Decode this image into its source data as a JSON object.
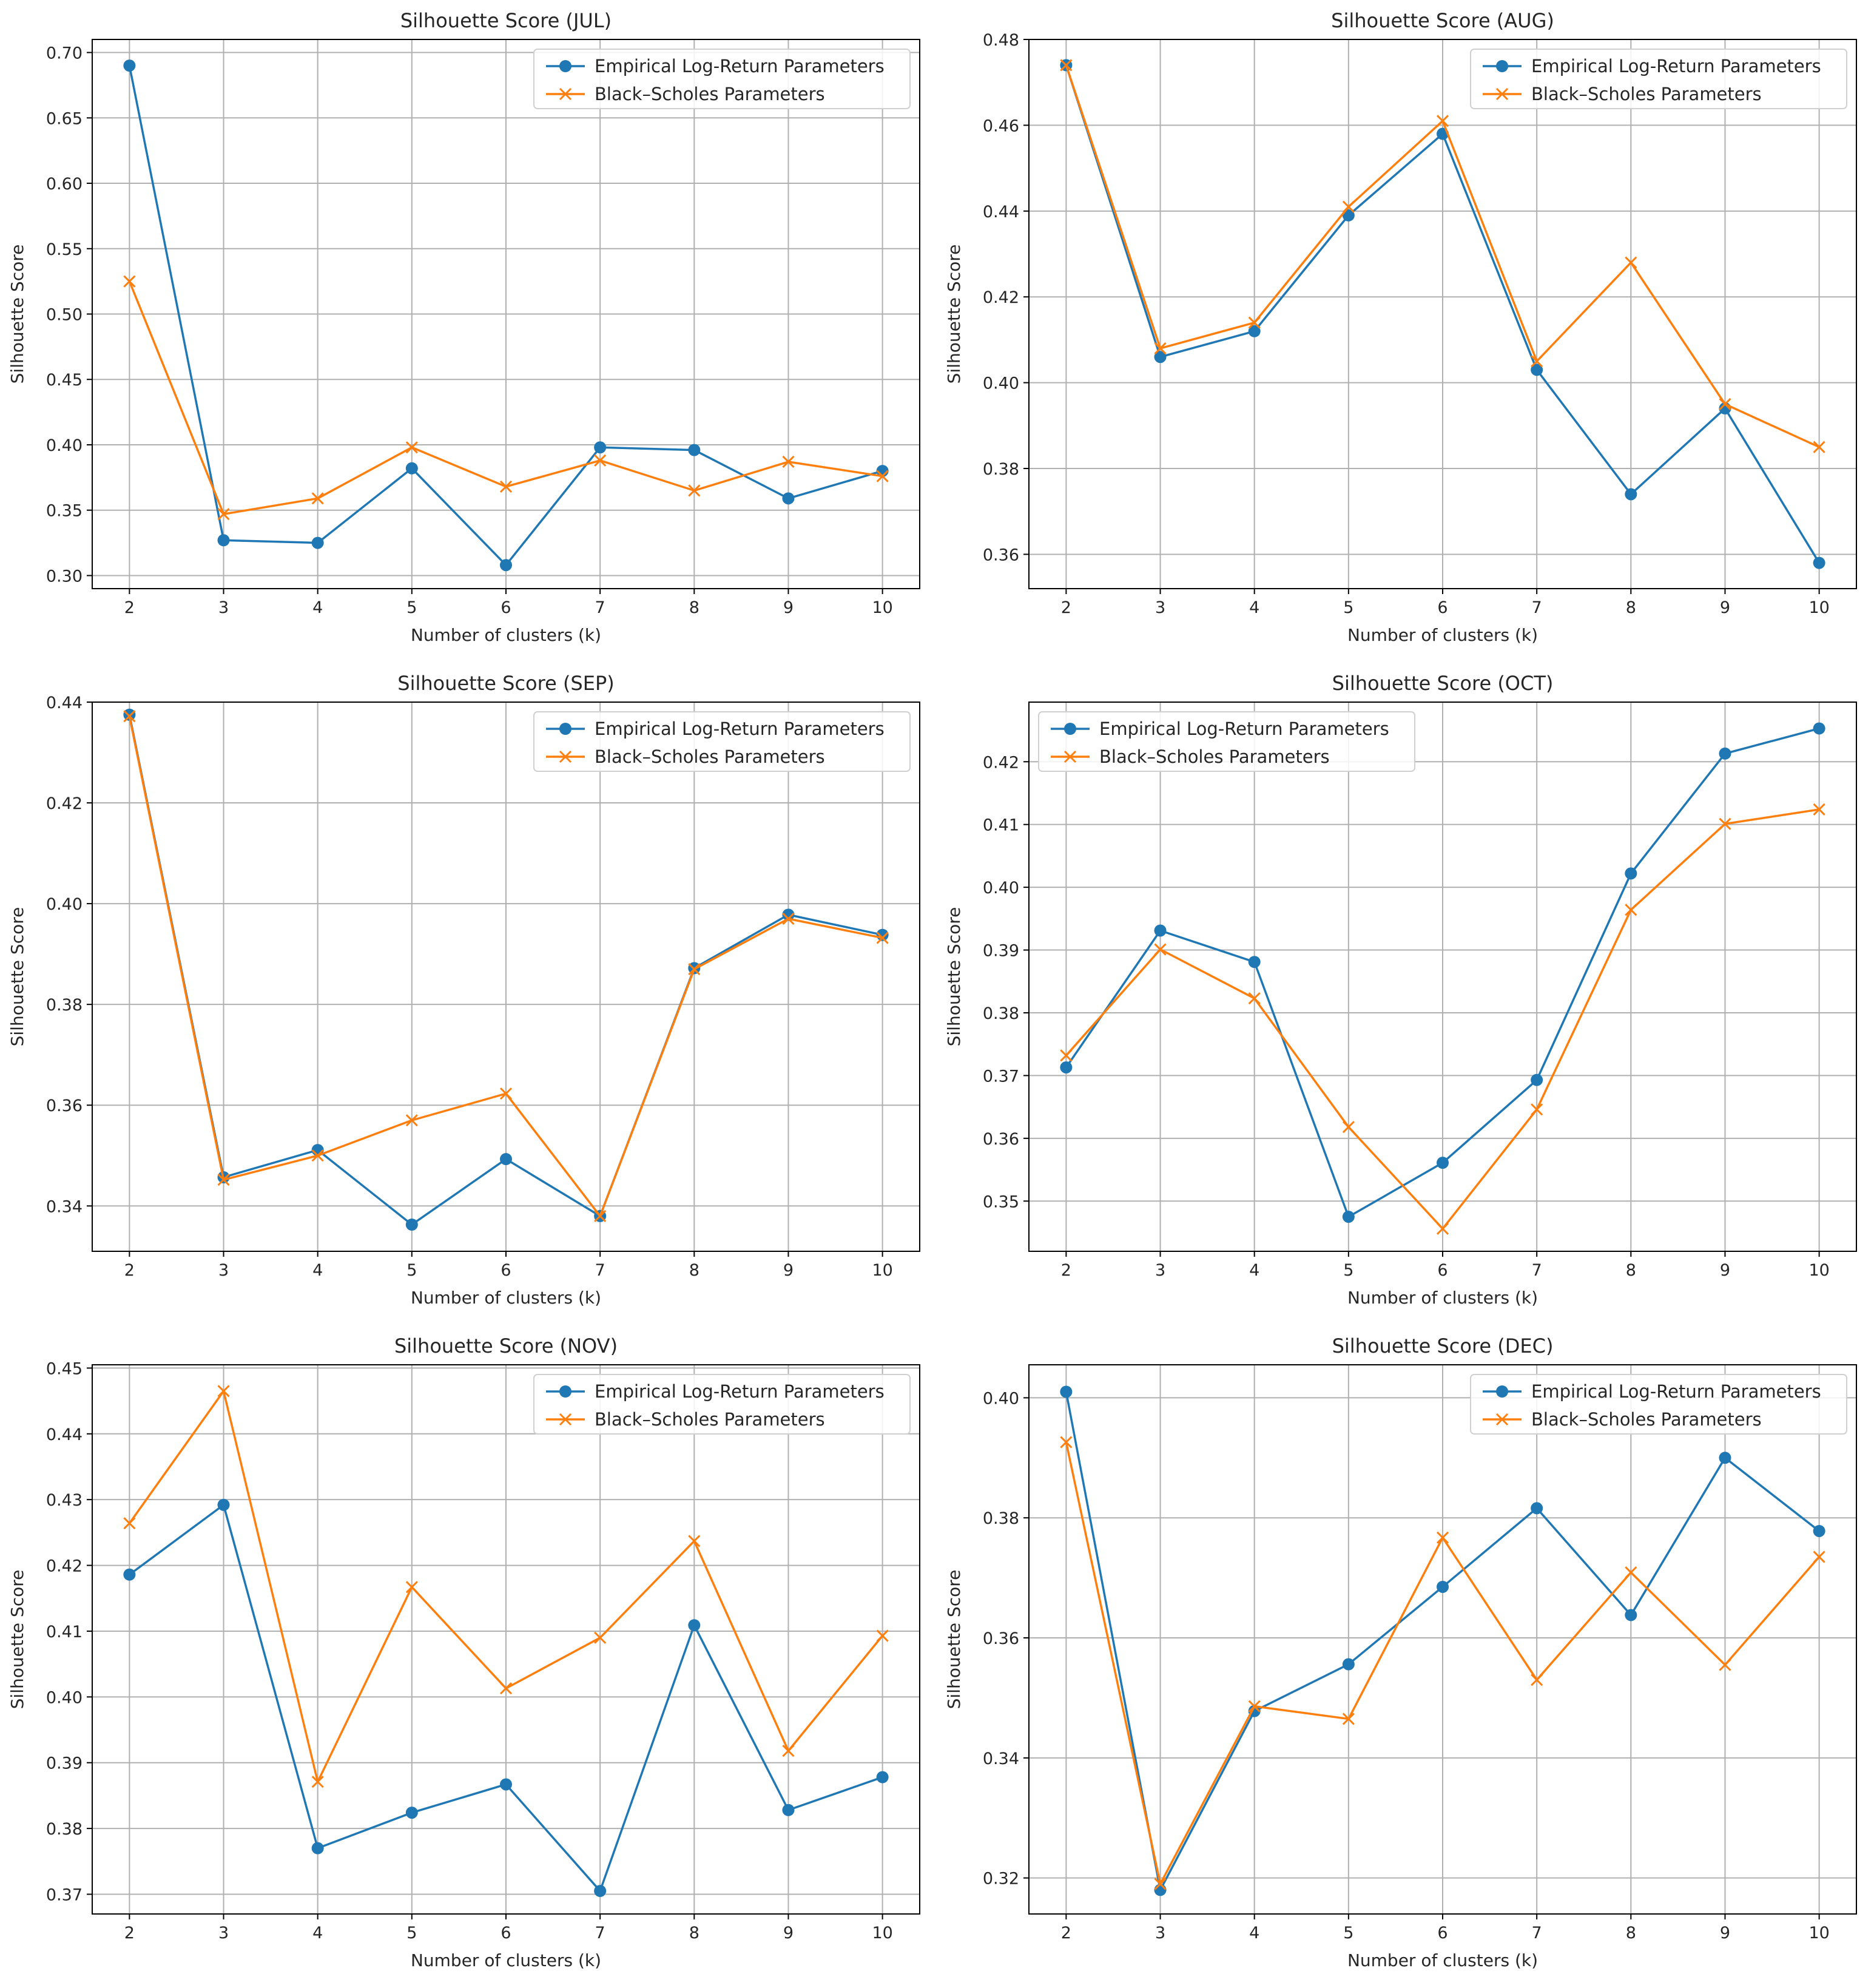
{
  "chart_data": [
    {
      "type": "line",
      "title": "Silhouette Score (JUL)",
      "xlabel": "Number of clusters (k)",
      "ylabel": "Silhouette Score",
      "x": [
        2,
        3,
        4,
        5,
        6,
        7,
        8,
        9,
        10
      ],
      "ylim": [
        0.29,
        0.71
      ],
      "yticks": [
        "0.30",
        "0.35",
        "0.40",
        "0.45",
        "0.50",
        "0.55",
        "0.60",
        "0.65",
        "0.70"
      ],
      "legend": "upper right",
      "grid": true,
      "series": [
        {
          "name": "Empirical Log-Return Parameters",
          "marker": "circle",
          "color": "#1f77b4",
          "values": [
            0.69,
            0.327,
            0.325,
            0.382,
            0.308,
            0.398,
            0.396,
            0.359,
            0.38
          ]
        },
        {
          "name": "Black–Scholes Parameters",
          "marker": "x",
          "color": "#ff7f0e",
          "values": [
            0.525,
            0.347,
            0.359,
            0.398,
            0.368,
            0.388,
            0.365,
            0.387,
            0.376
          ]
        }
      ]
    },
    {
      "type": "line",
      "title": "Silhouette Score (AUG)",
      "xlabel": "Number of clusters (k)",
      "ylabel": "Silhouette Score",
      "x": [
        2,
        3,
        4,
        5,
        6,
        7,
        8,
        9,
        10
      ],
      "ylim": [
        0.352,
        0.48
      ],
      "yticks": [
        "0.36",
        "0.38",
        "0.40",
        "0.42",
        "0.44",
        "0.46",
        "0.48"
      ],
      "legend": "upper right",
      "grid": true,
      "series": [
        {
          "name": "Empirical Log-Return Parameters",
          "marker": "circle",
          "color": "#1f77b4",
          "values": [
            0.474,
            0.406,
            0.412,
            0.439,
            0.458,
            0.403,
            0.374,
            0.394,
            0.358
          ]
        },
        {
          "name": "Black–Scholes Parameters",
          "marker": "x",
          "color": "#ff7f0e",
          "values": [
            0.474,
            0.408,
            0.414,
            0.441,
            0.461,
            0.405,
            0.428,
            0.395,
            0.385
          ]
        }
      ]
    },
    {
      "type": "line",
      "title": "Silhouette Score (SEP)",
      "xlabel": "Number of clusters (k)",
      "ylabel": "Silhouette Score",
      "x": [
        2,
        3,
        4,
        5,
        6,
        7,
        8,
        9,
        10
      ],
      "ylim": [
        0.331,
        0.44
      ],
      "yticks": [
        "0.34",
        "0.36",
        "0.38",
        "0.40",
        "0.42",
        "0.44"
      ],
      "legend": "upper right",
      "grid": true,
      "series": [
        {
          "name": "Empirical Log-Return Parameters",
          "marker": "circle",
          "color": "#1f77b4",
          "values": [
            0.4375,
            0.3457,
            0.3511,
            0.3363,
            0.3493,
            0.338,
            0.3872,
            0.3978,
            0.3938
          ]
        },
        {
          "name": "Black–Scholes Parameters",
          "marker": "x",
          "color": "#ff7f0e",
          "values": [
            0.4372,
            0.3452,
            0.35,
            0.357,
            0.3623,
            0.338,
            0.387,
            0.397,
            0.3932
          ]
        }
      ]
    },
    {
      "type": "line",
      "title": "Silhouette Score (OCT)",
      "xlabel": "Number of clusters (k)",
      "ylabel": "Silhouette Score",
      "x": [
        2,
        3,
        4,
        5,
        6,
        7,
        8,
        9,
        10
      ],
      "ylim": [
        0.342,
        0.4295
      ],
      "yticks": [
        "0.35",
        "0.36",
        "0.37",
        "0.38",
        "0.39",
        "0.40",
        "0.41",
        "0.42"
      ],
      "legend": "upper left",
      "grid": true,
      "series": [
        {
          "name": "Empirical Log-Return Parameters",
          "marker": "circle",
          "color": "#1f77b4",
          "values": [
            0.3713,
            0.3931,
            0.3881,
            0.3475,
            0.3561,
            0.3693,
            0.4022,
            0.4213,
            0.4253
          ]
        },
        {
          "name": "Black–Scholes Parameters",
          "marker": "x",
          "color": "#ff7f0e",
          "values": [
            0.3732,
            0.3901,
            0.3823,
            0.3618,
            0.3456,
            0.3646,
            0.3964,
            0.4101,
            0.4124
          ]
        }
      ]
    },
    {
      "type": "line",
      "title": "Silhouette Score (NOV)",
      "xlabel": "Number of clusters (k)",
      "ylabel": "Silhouette Score",
      "x": [
        2,
        3,
        4,
        5,
        6,
        7,
        8,
        9,
        10
      ],
      "ylim": [
        0.367,
        0.4505
      ],
      "yticks": [
        "0.37",
        "0.38",
        "0.39",
        "0.40",
        "0.41",
        "0.42",
        "0.43",
        "0.44",
        "0.45"
      ],
      "legend": "upper right",
      "grid": true,
      "series": [
        {
          "name": "Empirical Log-Return Parameters",
          "marker": "circle",
          "color": "#1f77b4",
          "values": [
            0.4186,
            0.4292,
            0.377,
            0.3824,
            0.3867,
            0.3705,
            0.4109,
            0.3828,
            0.3878
          ]
        },
        {
          "name": "Black–Scholes Parameters",
          "marker": "x",
          "color": "#ff7f0e",
          "values": [
            0.4264,
            0.4465,
            0.3871,
            0.4167,
            0.4013,
            0.409,
            0.4237,
            0.3918,
            0.4093
          ]
        }
      ]
    },
    {
      "type": "line",
      "title": "Silhouette Score (DEC)",
      "xlabel": "Number of clusters (k)",
      "ylabel": "Silhouette Score",
      "x": [
        2,
        3,
        4,
        5,
        6,
        7,
        8,
        9,
        10
      ],
      "ylim": [
        0.314,
        0.4055
      ],
      "yticks": [
        "0.32",
        "0.34",
        "0.36",
        "0.38",
        "0.40"
      ],
      "legend": "upper right",
      "grid": true,
      "series": [
        {
          "name": "Empirical Log-Return Parameters",
          "marker": "circle",
          "color": "#1f77b4",
          "values": [
            0.401,
            0.318,
            0.3478,
            0.3556,
            0.3685,
            0.3816,
            0.3638,
            0.39,
            0.3778
          ]
        },
        {
          "name": "Black–Scholes Parameters",
          "marker": "x",
          "color": "#ff7f0e",
          "values": [
            0.3926,
            0.319,
            0.3486,
            0.3465,
            0.3767,
            0.353,
            0.3709,
            0.3555,
            0.3735
          ]
        }
      ]
    }
  ]
}
